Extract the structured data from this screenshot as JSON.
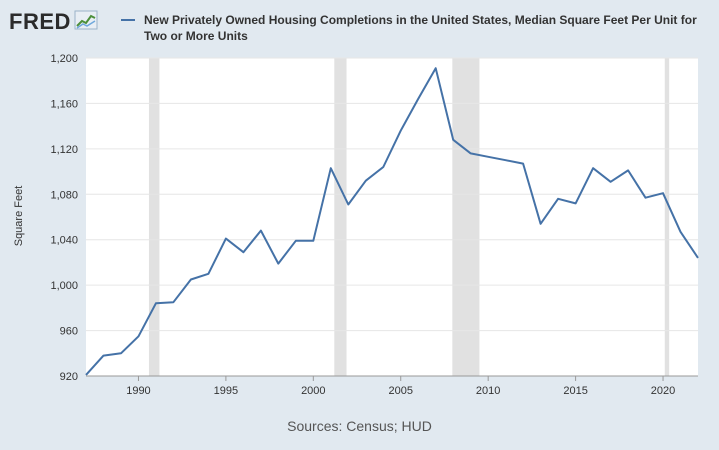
{
  "brand": {
    "logo_text": "FRED",
    "logo_icon": "trend-line-icon"
  },
  "chart_data": {
    "type": "line",
    "title": "New Privately Owned Housing Completions in the United States, Median Square Feet Per Unit for Two or More Units",
    "ylabel": "Square Feet",
    "xlabel": "",
    "ylim": [
      920,
      1200
    ],
    "xlim": [
      1987,
      2022
    ],
    "yticks": [
      920,
      960,
      1000,
      1040,
      1080,
      1120,
      1160,
      1200
    ],
    "ytick_labels": [
      "920",
      "960",
      "1,000",
      "1,040",
      "1,080",
      "1,120",
      "1,160",
      "1,200"
    ],
    "xticks": [
      1990,
      1995,
      2000,
      2005,
      2010,
      2015,
      2020
    ],
    "xtick_labels": [
      "1990",
      "1995",
      "2000",
      "2005",
      "2010",
      "2015",
      "2020"
    ],
    "grid": true,
    "legend": "top",
    "series": [
      {
        "name": "New Privately Owned Housing Completions in the United States, Median Square Feet Per Unit for Two or More Units",
        "color": "#4572a7",
        "x": [
          1987,
          1988,
          1989,
          1990,
          1991,
          1992,
          1993,
          1994,
          1995,
          1996,
          1997,
          1998,
          1999,
          2000,
          2001,
          2002,
          2003,
          2004,
          2005,
          2006,
          2007,
          2008,
          2009,
          2010,
          2011,
          2012,
          2013,
          2014,
          2015,
          2016,
          2017,
          2018,
          2019,
          2020,
          2021,
          2022
        ],
        "y": [
          921,
          938,
          940,
          955,
          984,
          985,
          1005,
          1010,
          1041,
          1029,
          1048,
          1019,
          1039,
          1039,
          1103,
          1071,
          1092,
          1104,
          1136,
          1164,
          1191,
          1128,
          1116,
          1113,
          1110,
          1107,
          1054,
          1076,
          1072,
          1103,
          1091,
          1101,
          1077,
          1081,
          1047,
          1024
        ]
      }
    ],
    "recessions": [
      [
        1990.6,
        1991.2
      ],
      [
        2001.2,
        2001.9
      ],
      [
        2007.95,
        2009.5
      ],
      [
        2020.1,
        2020.35
      ]
    ]
  },
  "footer": {
    "source": "Sources: Census; HUD"
  }
}
